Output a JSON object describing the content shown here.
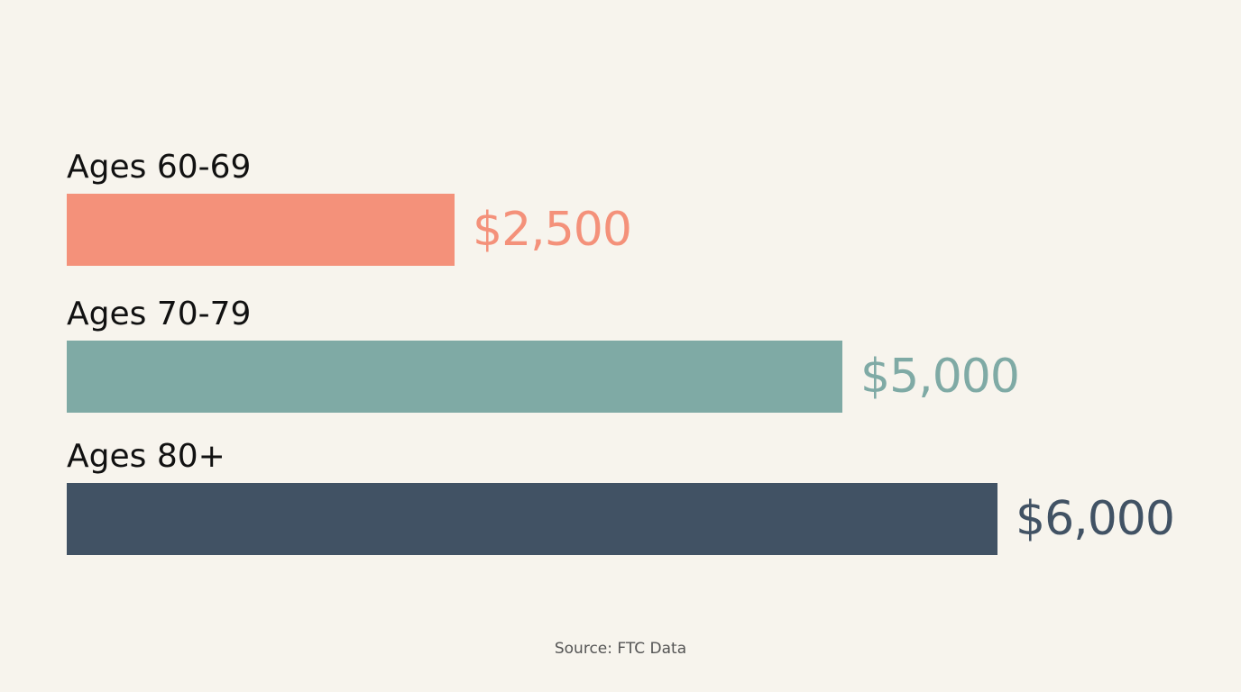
{
  "chart_data": {
    "type": "bar",
    "orientation": "horizontal",
    "categories": [
      "Ages 60-69",
      "Ages 70-79",
      "Ages 80+"
    ],
    "values": [
      2500,
      5000,
      6000
    ],
    "value_labels": [
      "$2,500",
      "$5,000",
      "$6,000"
    ],
    "colors": [
      "#f4917a",
      "#7faaa5",
      "#415264"
    ],
    "source": "Source: FTC Data"
  }
}
